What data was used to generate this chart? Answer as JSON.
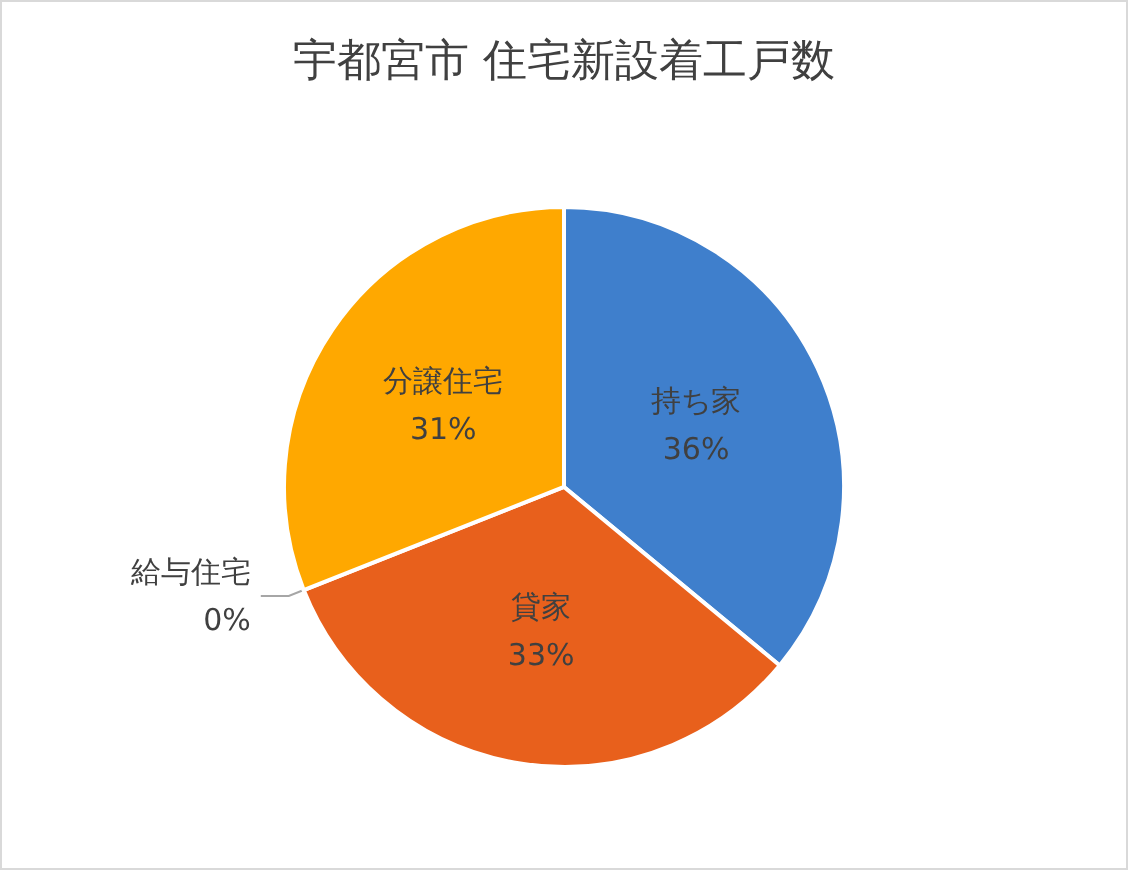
{
  "chart_data": {
    "type": "pie",
    "title": "宇都宮市 住宅新設着工戸数",
    "categories": [
      "持ち家",
      "貸家",
      "給与住宅",
      "分譲住宅"
    ],
    "values": [
      36,
      33,
      0,
      31
    ],
    "value_labels": [
      "36%",
      "33%",
      "0%",
      "31%"
    ],
    "colors": [
      "#3f7fcc",
      "#e8601c",
      "#a5a5a5",
      "#ffa800"
    ],
    "legend": false
  }
}
